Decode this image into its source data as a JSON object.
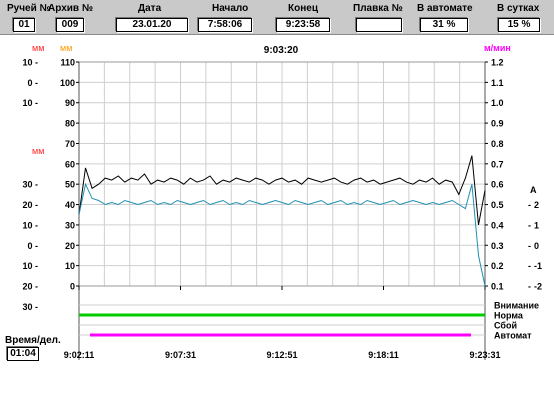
{
  "header": {
    "fields": [
      {
        "label": "Ручей №",
        "value": "01"
      },
      {
        "label": "Архив №",
        "value": "009"
      },
      {
        "label": "Дата",
        "value": "23.01.20"
      },
      {
        "label": "Начало",
        "value": "7:58:06"
      },
      {
        "label": "Конец",
        "value": "9:23:58"
      },
      {
        "label": "Плавка №",
        "value": ""
      },
      {
        "label": "В автомате",
        "value": "31 %"
      },
      {
        "label": "В сутках",
        "value": "15 %"
      }
    ]
  },
  "colors": {
    "left_unit_1": "#ff2a2a",
    "left_unit_2": "#ff9900",
    "right_unit": "#ff00ff",
    "series_level": "#000000",
    "series_speed": "#1f8fb0",
    "status_normal": "#00cc00",
    "status_auto": "#ff00ff"
  },
  "chart_data": {
    "type": "line",
    "cursor_time": "9:03:20",
    "axis_units": {
      "left_outer": "мм",
      "left_inner": "мм",
      "left_lower": "мм",
      "right": "м/мин",
      "right_inner": "А"
    },
    "left_outer_ticks": [
      "10 -",
      "0 -",
      "10 -",
      "",
      "",
      "",
      "30 -",
      "20 -",
      "10 -",
      "0 -",
      "10 -",
      "20 -",
      "30 -"
    ],
    "left_inner_ticks": [
      "110",
      "100",
      "90",
      "80",
      "70",
      "60",
      "50",
      "40",
      "30",
      "20",
      "10",
      "0"
    ],
    "right_ticks": [
      "1.2",
      "1.1",
      "1.0",
      "0.9",
      "0.8",
      "0.7",
      "0.6",
      "0.5",
      "0.4",
      "0.3",
      "0.2",
      "0.1"
    ],
    "right_inner_ticks": [
      "2",
      "1",
      "0",
      "-1",
      "-2"
    ],
    "x_ticks": [
      "9:02:11",
      "9:07:31",
      "9:12:51",
      "9:18:11",
      "9:23:31"
    ],
    "status_labels": [
      "Внимание",
      "Норма",
      "Сбой",
      "Автомат"
    ],
    "ylim_left_inner": [
      0,
      110
    ],
    "series": [
      {
        "values": [
          35,
          58,
          48,
          50,
          53,
          52,
          54,
          51,
          53,
          52,
          55,
          50,
          52,
          51,
          53,
          52,
          50,
          53,
          51,
          52,
          54,
          50,
          52,
          51,
          53,
          52,
          51,
          53,
          52,
          50,
          52,
          53,
          51,
          52,
          50,
          53,
          52,
          51,
          52,
          53,
          51,
          50,
          52,
          53,
          51,
          52,
          50,
          51,
          52,
          53,
          51,
          50,
          52,
          51,
          53,
          50,
          52,
          51,
          45,
          53,
          64,
          30,
          47
        ]
      },
      {
        "values": [
          35,
          50,
          43,
          42,
          40,
          41,
          40,
          42,
          41,
          40,
          41,
          42,
          40,
          41,
          40,
          42,
          41,
          40,
          41,
          42,
          40,
          41,
          42,
          40,
          41,
          40,
          42,
          41,
          40,
          41,
          42,
          41,
          40,
          42,
          41,
          40,
          41,
          42,
          40,
          41,
          42,
          40,
          41,
          40,
          42,
          41,
          40,
          41,
          42,
          40,
          41,
          42,
          41,
          40,
          41,
          40,
          41,
          42,
          40,
          38,
          50,
          15,
          0
        ]
      }
    ]
  },
  "bottom": {
    "label": "Время/дел.",
    "value": "01:04"
  }
}
